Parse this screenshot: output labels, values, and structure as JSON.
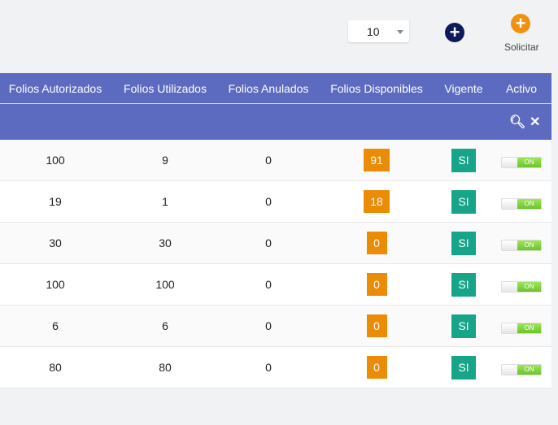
{
  "toolbar": {
    "page_size": "10",
    "solicitar_label": "Solicitar"
  },
  "table": {
    "headers": [
      "Folios Autorizados",
      "Folios Utilizados",
      "Folios Anulados",
      "Folios Disponibles",
      "Vigente",
      "Activo"
    ],
    "rows": [
      {
        "autorizados": "100",
        "utilizados": "9",
        "anulados": "0",
        "disponibles": "91",
        "vigente": "SI",
        "activo": "ON"
      },
      {
        "autorizados": "19",
        "utilizados": "1",
        "anulados": "0",
        "disponibles": "18",
        "vigente": "SI",
        "activo": "ON"
      },
      {
        "autorizados": "30",
        "utilizados": "30",
        "anulados": "0",
        "disponibles": "0",
        "vigente": "SI",
        "activo": "ON"
      },
      {
        "autorizados": "100",
        "utilizados": "100",
        "anulados": "0",
        "disponibles": "0",
        "vigente": "SI",
        "activo": "ON"
      },
      {
        "autorizados": "6",
        "utilizados": "6",
        "anulados": "0",
        "disponibles": "0",
        "vigente": "SI",
        "activo": "ON"
      },
      {
        "autorizados": "80",
        "utilizados": "80",
        "anulados": "0",
        "disponibles": "0",
        "vigente": "SI",
        "activo": "ON"
      }
    ]
  },
  "colors": {
    "header": "#5c6bc0",
    "badge": "#ea8c05",
    "vigente": "#17a589",
    "add": "#0d1a5c",
    "solicitar": "#ef9211"
  }
}
